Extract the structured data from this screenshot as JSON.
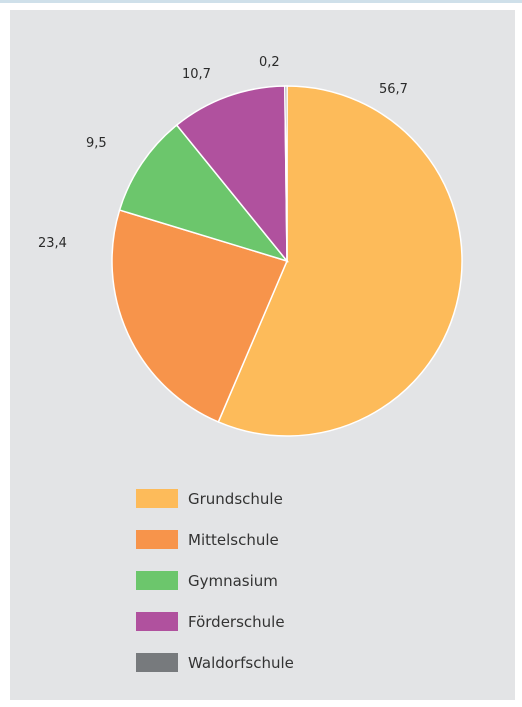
{
  "chart_data": {
    "type": "pie",
    "categories": [
      "Grundschule",
      "Mittelschule",
      "Gymnasium",
      "Förderschule",
      "Waldorfschule"
    ],
    "values": [
      56.7,
      23.4,
      9.5,
      10.7,
      0.2
    ],
    "value_labels": [
      "56,7",
      "23,4",
      "9,5",
      "10,7",
      "0,2"
    ],
    "colors": [
      "#fdbb5a",
      "#f7944b",
      "#6cc66c",
      "#b0519e",
      "#777a7d"
    ],
    "legend_position": "bottom",
    "title": "",
    "xlabel": "",
    "ylabel": ""
  }
}
